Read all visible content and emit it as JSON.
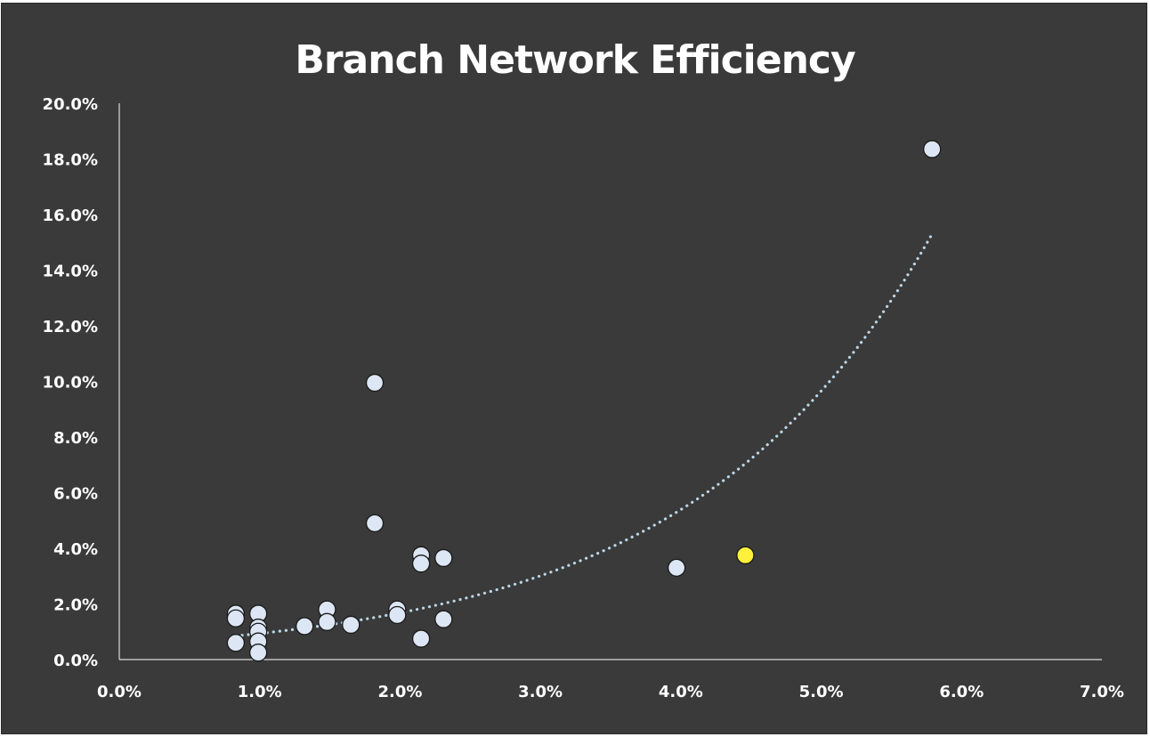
{
  "chart_data": {
    "type": "scatter",
    "title": "Branch Network Efficiency",
    "xlabel": "",
    "ylabel": "",
    "xlim": [
      0.0,
      0.07
    ],
    "ylim": [
      0.0,
      0.2
    ],
    "x_ticks": [
      "0.0%",
      "1.0%",
      "2.0%",
      "3.0%",
      "4.0%",
      "5.0%",
      "6.0%",
      "7.0%"
    ],
    "y_ticks": [
      "0.0%",
      "2.0%",
      "4.0%",
      "6.0%",
      "8.0%",
      "10.0%",
      "12.0%",
      "14.0%",
      "16.0%",
      "18.0%",
      "20.0%"
    ],
    "grid": false,
    "legend": "none",
    "points": [
      {
        "x": 0.0083,
        "y": 0.0165
      },
      {
        "x": 0.0083,
        "y": 0.0148
      },
      {
        "x": 0.0083,
        "y": 0.006
      },
      {
        "x": 0.0099,
        "y": 0.0165
      },
      {
        "x": 0.0099,
        "y": 0.0115
      },
      {
        "x": 0.0099,
        "y": 0.01
      },
      {
        "x": 0.0099,
        "y": 0.0065
      },
      {
        "x": 0.0099,
        "y": 0.0025
      },
      {
        "x": 0.0132,
        "y": 0.012
      },
      {
        "x": 0.0148,
        "y": 0.018
      },
      {
        "x": 0.0148,
        "y": 0.0135
      },
      {
        "x": 0.0165,
        "y": 0.0125
      },
      {
        "x": 0.0182,
        "y": 0.0995
      },
      {
        "x": 0.0182,
        "y": 0.049
      },
      {
        "x": 0.0198,
        "y": 0.018
      },
      {
        "x": 0.0198,
        "y": 0.016
      },
      {
        "x": 0.0215,
        "y": 0.0375
      },
      {
        "x": 0.0215,
        "y": 0.0345
      },
      {
        "x": 0.0215,
        "y": 0.0075
      },
      {
        "x": 0.0231,
        "y": 0.0365
      },
      {
        "x": 0.0231,
        "y": 0.0145
      },
      {
        "x": 0.0397,
        "y": 0.033
      },
      {
        "x": 0.0446,
        "y": 0.0375,
        "highlight": true
      },
      {
        "x": 0.0579,
        "y": 0.1835
      }
    ],
    "trendline": {
      "type": "exponential",
      "x_range": [
        0.0083,
        0.0579
      ],
      "y_at_start": 0.0085,
      "y_at_end": 0.153
    },
    "colors": {
      "background": "#3a3a3a",
      "point_fill": "#dce6f4",
      "point_stroke": "#1a1a1a",
      "highlight_fill": "#fff03c",
      "trendline": "#bcd6e6",
      "axis": "#d9d9d9",
      "text": "#ffffff"
    }
  }
}
